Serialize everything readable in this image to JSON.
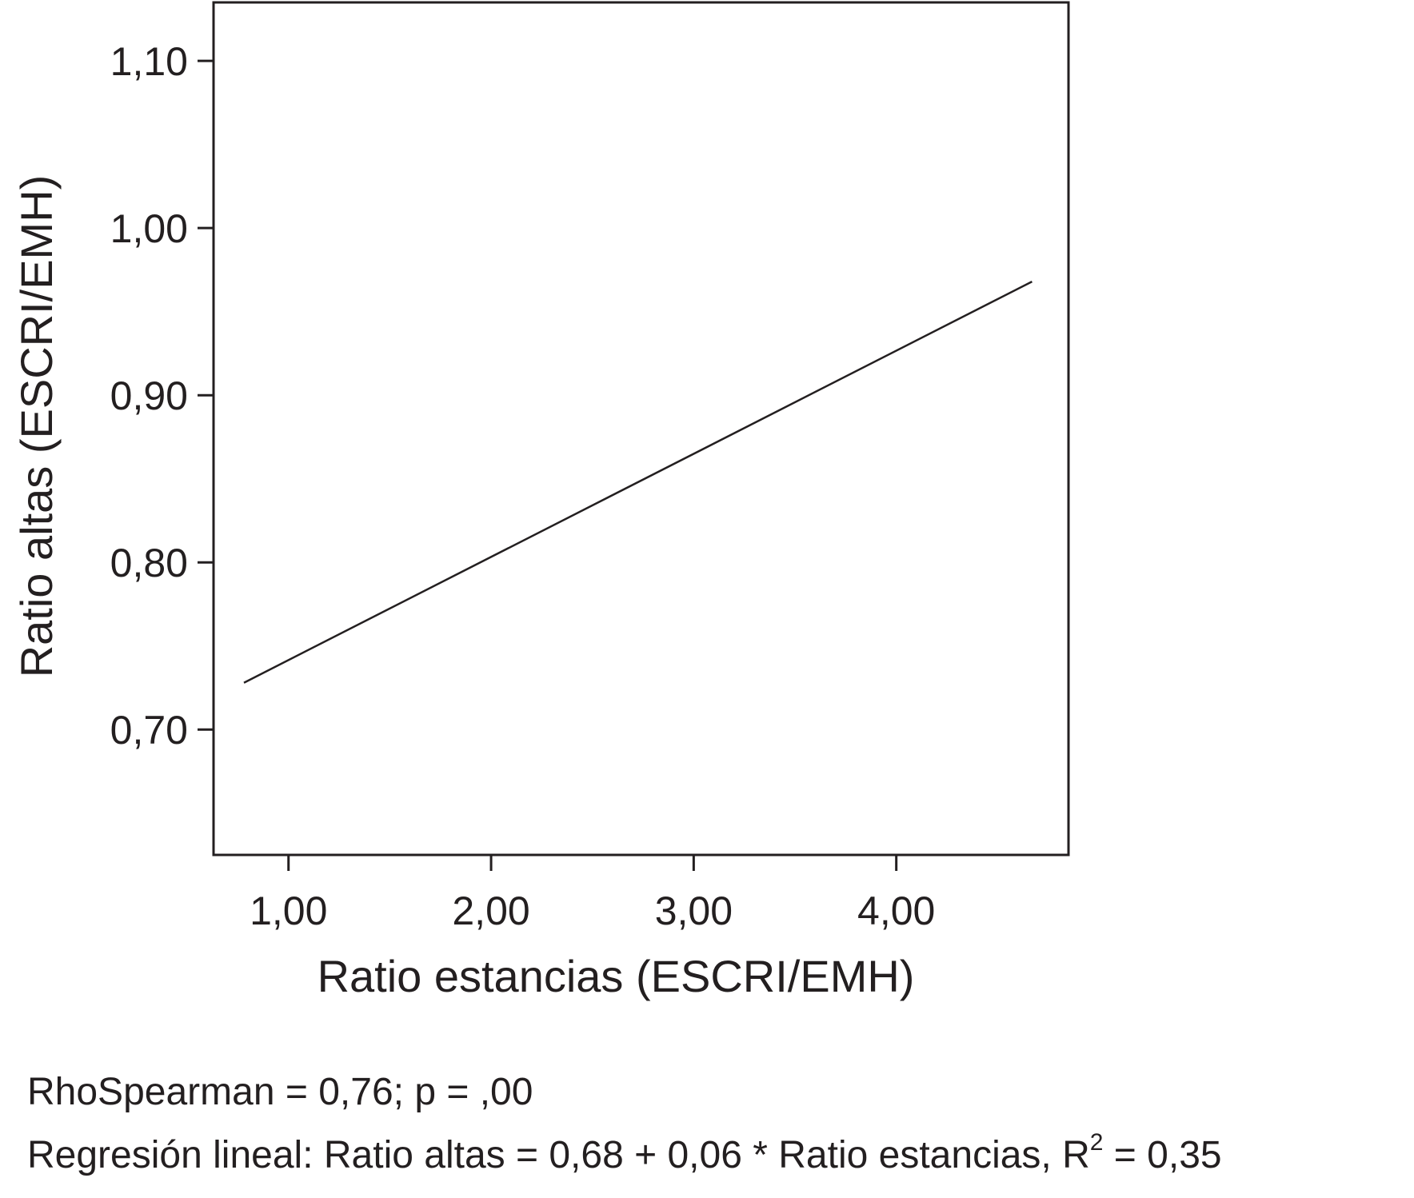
{
  "chart_data": {
    "type": "line",
    "xlabel": "Ratio estancias (ESCRI/EMH)",
    "ylabel": "Ratio altas (ESCRI/EMH)",
    "xlim": [
      0.63,
      4.85
    ],
    "ylim": [
      0.625,
      1.135
    ],
    "x_ticks": [
      1.0,
      2.0,
      3.0,
      4.0
    ],
    "x_tick_labels": [
      "1,00",
      "2,00",
      "3,00",
      "4,00"
    ],
    "y_ticks": [
      0.7,
      0.8,
      0.9,
      1.0,
      1.1
    ],
    "y_tick_labels": [
      "0,70",
      "0,80",
      "0,90",
      "1,00",
      "1,10"
    ],
    "grid": false,
    "series": [
      {
        "x": [
          0.78,
          4.67
        ],
        "y": [
          0.728,
          0.968
        ]
      }
    ],
    "colors": {
      "line": "#231f20",
      "frame": "#231f20",
      "text": "#231f20"
    }
  },
  "notes": {
    "spearman": "RhoSpearman = 0,76; p = ,00",
    "regression_prefix": "Regresión lineal: Ratio altas = 0,68 + 0,06 * Ratio estancias, R",
    "regression_sup": "2",
    "regression_suffix": " = 0,35"
  }
}
